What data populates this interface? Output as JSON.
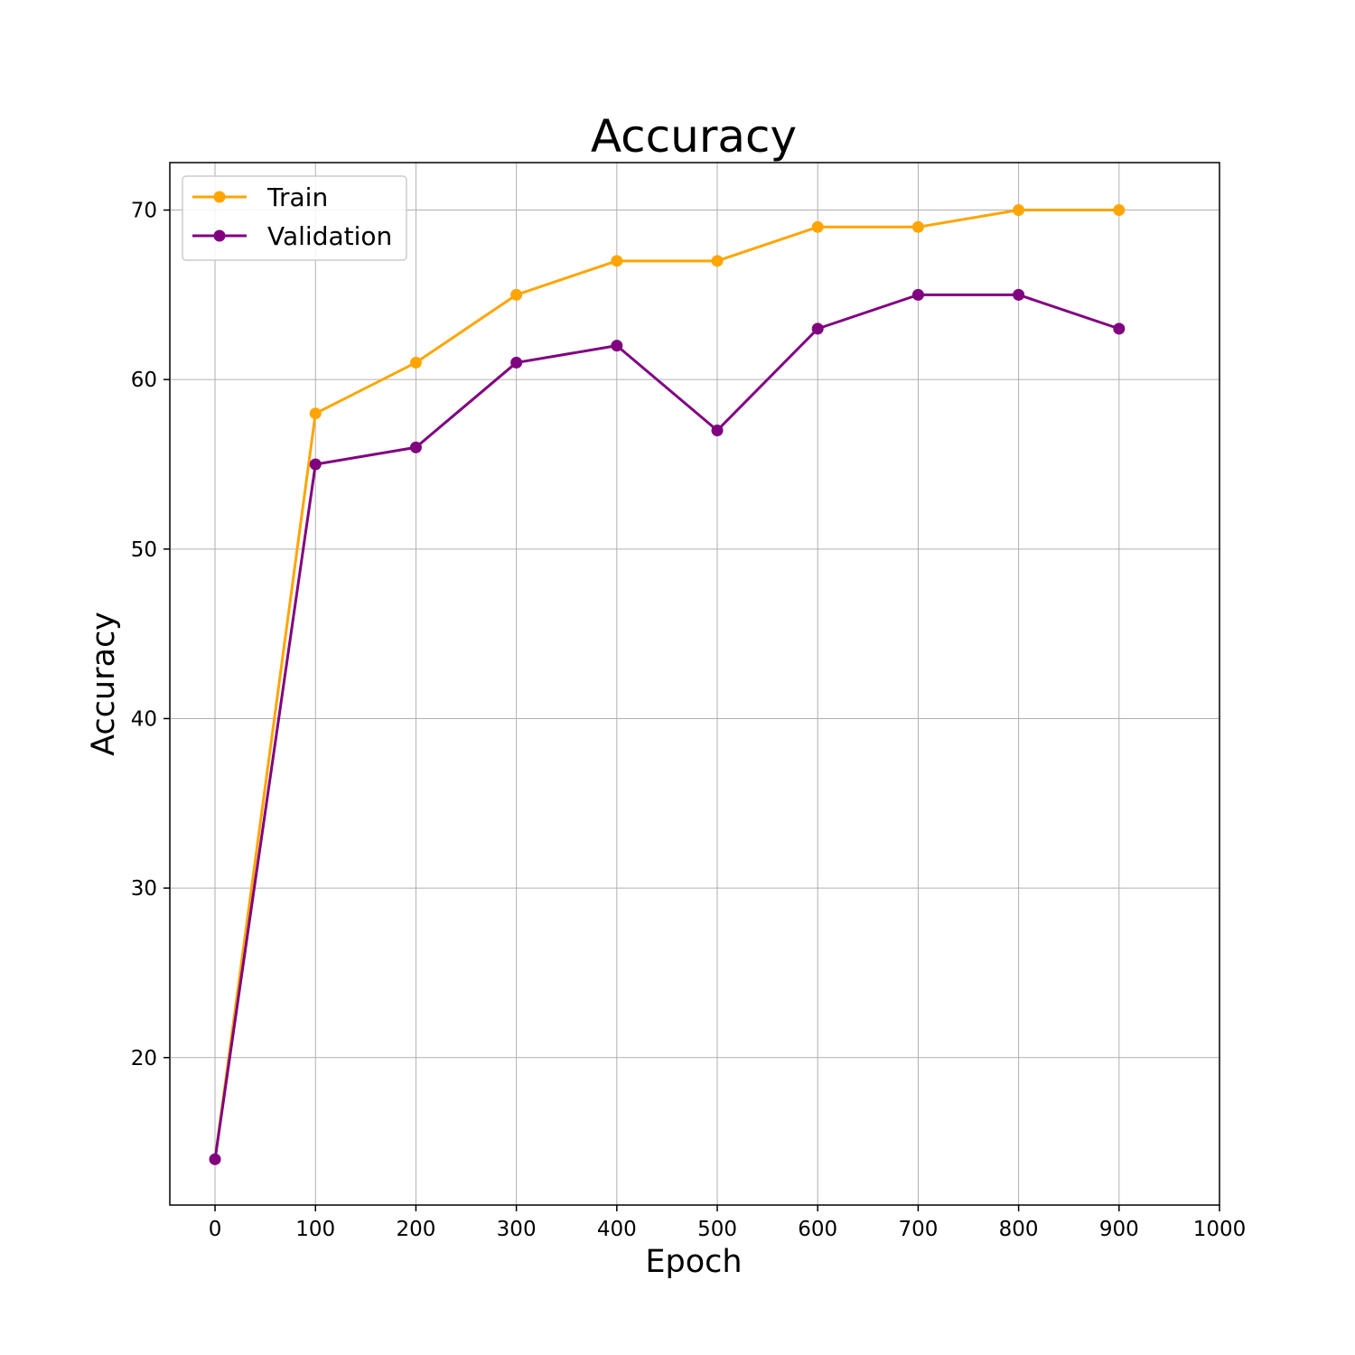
{
  "chart_data": {
    "type": "line",
    "title": "Accuracy",
    "xlabel": "Epoch",
    "ylabel": "Accuracy",
    "x": [
      0,
      100,
      200,
      300,
      400,
      500,
      600,
      700,
      800,
      900
    ],
    "series": [
      {
        "name": "Train",
        "color": "#FFA500",
        "values": [
          14,
          58,
          61,
          65,
          67,
          67,
          69,
          69,
          70,
          70
        ]
      },
      {
        "name": "Validation",
        "color": "#800080",
        "values": [
          14,
          55,
          56,
          61,
          62,
          57,
          63,
          65,
          65,
          63
        ]
      }
    ],
    "xticks": [
      "0",
      "100",
      "200",
      "300",
      "400",
      "500",
      "600",
      "700",
      "800",
      "900",
      "1000"
    ],
    "yticks": [
      "20",
      "30",
      "40",
      "50",
      "60",
      "70"
    ],
    "xlim": [
      -45,
      1000
    ],
    "ylim": [
      11.3,
      72.8
    ],
    "grid": true,
    "legend": "upper-left",
    "marker": "circle"
  }
}
